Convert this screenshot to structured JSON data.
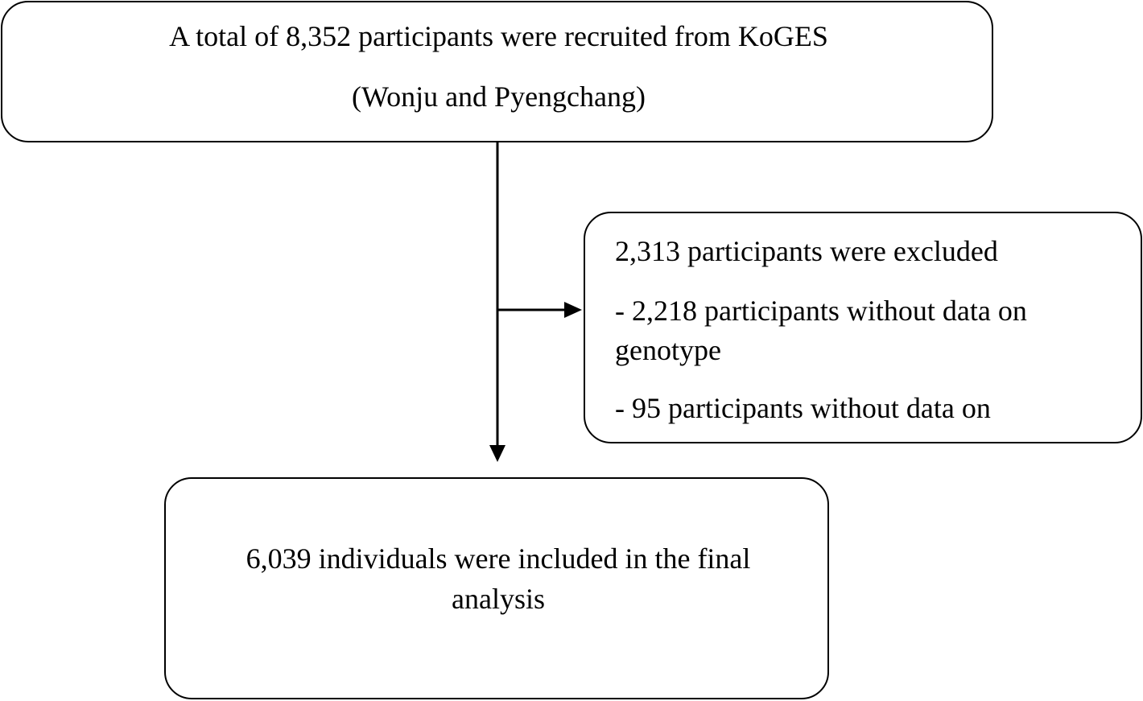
{
  "recruited": {
    "line1": "A total of 8,352 participants were recruited from KoGES",
    "line2": "(Wonju and Pyengchang)"
  },
  "excluded": {
    "title": "2,313 participants were excluded",
    "item1_line1": "- 2,218 participants without data on",
    "item1_line2": "genotype",
    "item2_line1": "- 95 participants without data on"
  },
  "final": {
    "line1": "6,039 individuals were included in the final",
    "line2": "analysis"
  }
}
